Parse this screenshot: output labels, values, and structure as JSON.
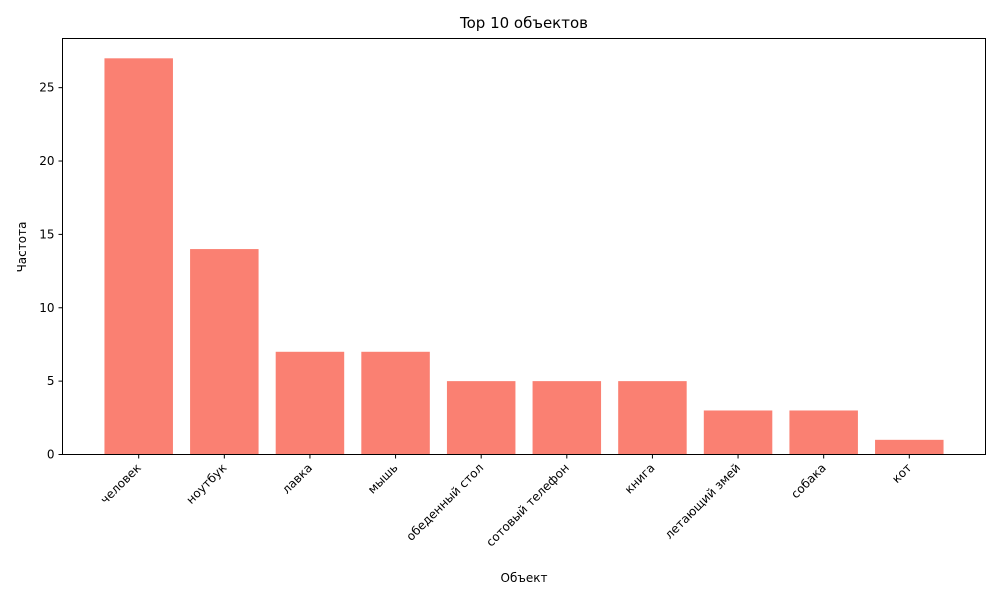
{
  "chart_data": {
    "type": "bar",
    "title": "Top 10 объектов",
    "xlabel": "Объект",
    "ylabel": "Частота",
    "categories": [
      "человек",
      "ноутбук",
      "лавка",
      "мышь",
      "обеденный стол",
      "сотовый телефон",
      "книга",
      "летающий змей",
      "собака",
      "кот"
    ],
    "values": [
      27,
      14,
      7,
      7,
      5,
      5,
      5,
      3,
      3,
      1
    ],
    "ylim": [
      0,
      28.35
    ],
    "yticks": [
      0,
      5,
      10,
      15,
      20,
      25
    ],
    "bar_color": "#fa8072",
    "grid": false,
    "legend": "none"
  }
}
